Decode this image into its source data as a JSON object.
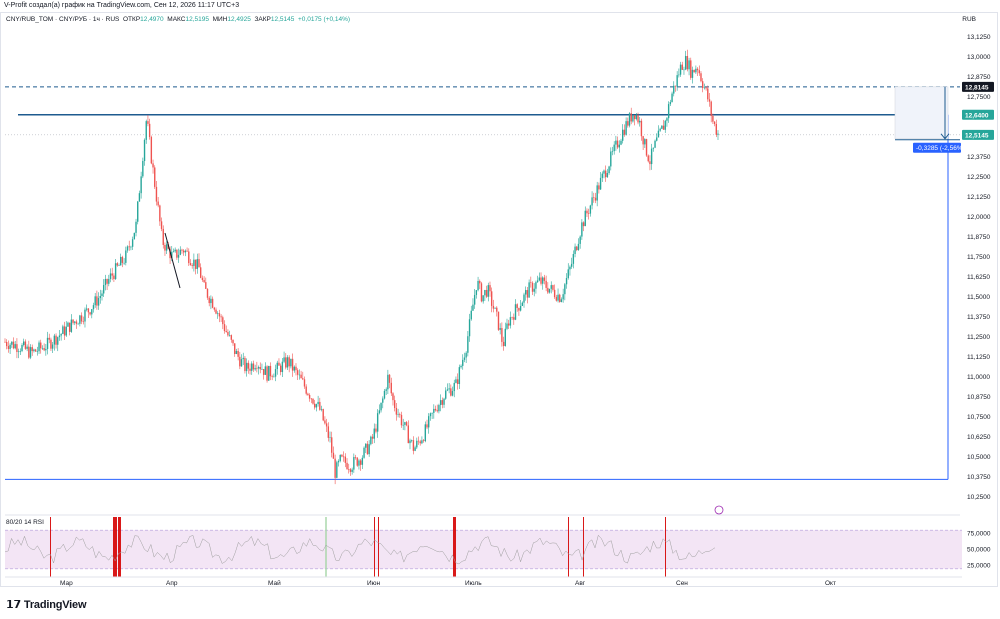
{
  "caption": "V-Profit создал(а) график на TradingView.com, Сен 12, 2026 11:17 UTC+3",
  "legend": {
    "symbol": "CNY/RUB_TOM · CNY/РУБ · 1ч · RUS",
    "open_label": "ОТКР",
    "open": "12,4970",
    "high_label": "МАКС",
    "high": "12,5195",
    "low_label": "МИН",
    "low": "12,4925",
    "close_label": "ЗАКР",
    "close": "12,5145",
    "change": "+0,0175 (+0,14%)"
  },
  "currency": "RUB",
  "rsi_label": "80/20 14 RSI",
  "brand": "TradingView",
  "colors": {
    "up": "#26a69a",
    "down": "#ef5350",
    "blue_line": "#2962ff",
    "level_line": "#1e5b8f",
    "rsi_band": "#f3e5f5",
    "rsi_signal": "#d50000",
    "price_badge": "#26a69a",
    "dark_badge": "#131722",
    "measure_badge": "#2962ff"
  },
  "chart_data": {
    "type": "candlestick",
    "y_axis_ticks": [
      "13,1250",
      "13,0000",
      "12,8750",
      "12,7500",
      "12,6250",
      "12,5000",
      "12,3750",
      "12,2500",
      "12,1250",
      "12,0000",
      "11,8750",
      "11,7500",
      "11,6250",
      "11,5000",
      "11,3750",
      "11,2500",
      "11,1250",
      "11,0000",
      "10,8750",
      "10,7500",
      "10,6250",
      "10,5000",
      "10,3750",
      "10,2500"
    ],
    "ylim": [
      10.2,
      13.17
    ],
    "x_axis_ticks": [
      "Мар",
      "Апр",
      "Май",
      "Июн",
      "Июль",
      "Авг",
      "Сен",
      "Окт"
    ],
    "price_path": [
      [
        0,
        11.22
      ],
      [
        3,
        11.19
      ],
      [
        5,
        11.15
      ],
      [
        8,
        11.2
      ],
      [
        11,
        11.28
      ],
      [
        13,
        11.34
      ],
      [
        16,
        11.42
      ],
      [
        18,
        11.5
      ],
      [
        20,
        11.62
      ],
      [
        23,
        11.75
      ],
      [
        25,
        11.95
      ],
      [
        26,
        12.3
      ],
      [
        27,
        12.62
      ],
      [
        28,
        12.35
      ],
      [
        29,
        12.1
      ],
      [
        30,
        11.85
      ],
      [
        32,
        11.75
      ],
      [
        34,
        11.8
      ],
      [
        36,
        11.72
      ],
      [
        37,
        11.68
      ],
      [
        38,
        11.55
      ],
      [
        40,
        11.45
      ],
      [
        42,
        11.3
      ],
      [
        44,
        11.15
      ],
      [
        46,
        11.05
      ],
      [
        48,
        11.1
      ],
      [
        50,
        11.02
      ],
      [
        52,
        11.05
      ],
      [
        54,
        11.1
      ],
      [
        56,
        11.0
      ],
      [
        58,
        10.9
      ],
      [
        60,
        10.8
      ],
      [
        62,
        10.6
      ],
      [
        63,
        10.4
      ],
      [
        64,
        10.48
      ],
      [
        66,
        10.45
      ],
      [
        68,
        10.5
      ],
      [
        70,
        10.6
      ],
      [
        72,
        10.85
      ],
      [
        73,
        11.0
      ],
      [
        74,
        10.85
      ],
      [
        76,
        10.7
      ],
      [
        78,
        10.55
      ],
      [
        80,
        10.65
      ],
      [
        82,
        10.8
      ],
      [
        84,
        10.9
      ],
      [
        86,
        10.95
      ],
      [
        88,
        11.2
      ],
      [
        90,
        11.6
      ],
      [
        91,
        11.5
      ],
      [
        92,
        11.55
      ],
      [
        94,
        11.35
      ],
      [
        95,
        11.2
      ],
      [
        96,
        11.35
      ],
      [
        98,
        11.45
      ],
      [
        100,
        11.55
      ],
      [
        102,
        11.6
      ],
      [
        104,
        11.55
      ],
      [
        106,
        11.5
      ],
      [
        108,
        11.7
      ],
      [
        110,
        11.95
      ],
      [
        112,
        12.1
      ],
      [
        114,
        12.25
      ],
      [
        116,
        12.4
      ],
      [
        118,
        12.55
      ],
      [
        120,
        12.66
      ],
      [
        121,
        12.6
      ],
      [
        122,
        12.45
      ],
      [
        123,
        12.35
      ],
      [
        124,
        12.45
      ],
      [
        126,
        12.6
      ],
      [
        127,
        12.75
      ],
      [
        128,
        12.85
      ],
      [
        129,
        12.95
      ],
      [
        130,
        12.98
      ],
      [
        131,
        12.9
      ],
      [
        132,
        12.95
      ],
      [
        133,
        12.85
      ],
      [
        134,
        12.75
      ],
      [
        135,
        12.6
      ],
      [
        136,
        12.52
      ]
    ],
    "horizontal_levels": [
      {
        "value": 12.8145,
        "label": "12,8145",
        "style": "dashed"
      },
      {
        "value": 12.64,
        "label": "12,6400",
        "style": "solid"
      },
      {
        "value": 12.5145,
        "label": "12,5145",
        "style": "dotted"
      }
    ],
    "low_level": {
      "value": 10.36
    },
    "measure_label": "-0,3285 (-2,56%)",
    "rsi": {
      "yticks": [
        "75,0000",
        "50,0000",
        "25,0000"
      ],
      "ylim": [
        15,
        85
      ],
      "band": [
        20,
        80
      ]
    }
  }
}
